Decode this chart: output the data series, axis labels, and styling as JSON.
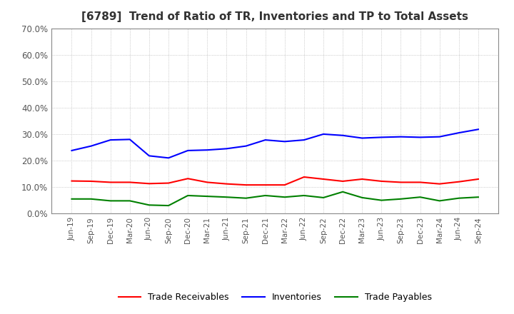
{
  "title": "[6789]  Trend of Ratio of TR, Inventories and TP to Total Assets",
  "xlabels": [
    "Jun-19",
    "Sep-19",
    "Dec-19",
    "Mar-20",
    "Jun-20",
    "Sep-20",
    "Dec-20",
    "Mar-21",
    "Jun-21",
    "Sep-21",
    "Dec-21",
    "Mar-22",
    "Jun-22",
    "Sep-22",
    "Dec-22",
    "Mar-23",
    "Jun-23",
    "Sep-23",
    "Dec-23",
    "Mar-24",
    "Jun-24",
    "Sep-24"
  ],
  "trade_receivables": [
    0.123,
    0.122,
    0.118,
    0.118,
    0.113,
    0.115,
    0.132,
    0.118,
    0.112,
    0.108,
    0.108,
    0.108,
    0.138,
    0.13,
    0.122,
    0.13,
    0.122,
    0.118,
    0.118,
    0.112,
    0.12,
    0.13
  ],
  "inventories": [
    0.238,
    0.255,
    0.278,
    0.28,
    0.218,
    0.21,
    0.238,
    0.24,
    0.245,
    0.255,
    0.278,
    0.272,
    0.278,
    0.3,
    0.295,
    0.285,
    0.288,
    0.29,
    0.288,
    0.29,
    0.305,
    0.318
  ],
  "trade_payables": [
    0.055,
    0.055,
    0.048,
    0.048,
    0.032,
    0.03,
    0.068,
    0.065,
    0.062,
    0.058,
    0.068,
    0.062,
    0.068,
    0.06,
    0.082,
    0.06,
    0.05,
    0.055,
    0.062,
    0.048,
    0.058,
    0.062
  ],
  "ylim": [
    0.0,
    0.7
  ],
  "yticks": [
    0.0,
    0.1,
    0.2,
    0.3,
    0.4,
    0.5,
    0.6,
    0.7
  ],
  "tr_color": "#ff0000",
  "inv_color": "#0000ff",
  "tp_color": "#008000",
  "background_color": "#ffffff",
  "grid_color": "#aaaaaa"
}
